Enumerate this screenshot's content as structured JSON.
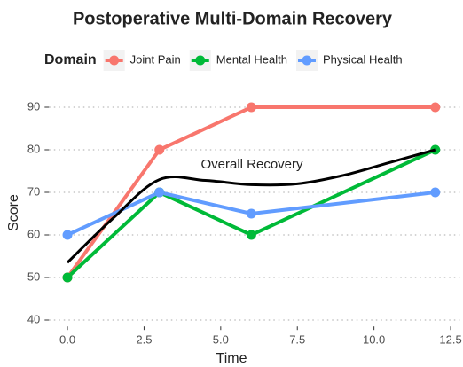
{
  "chart_data": {
    "type": "line",
    "title": "Postoperative Multi-Domain Recovery",
    "legend_title": "Domain",
    "x_label": "Time",
    "y_label": "Score",
    "x": [
      0,
      3,
      6,
      12
    ],
    "series": [
      {
        "name": "Joint Pain",
        "color": "#F8766D",
        "values": [
          50,
          80,
          90,
          90
        ]
      },
      {
        "name": "Mental Health",
        "color": "#00BA38",
        "values": [
          50,
          70,
          60,
          80
        ]
      },
      {
        "name": "Physical Health",
        "color": "#619CFF",
        "values": [
          60,
          70,
          65,
          70
        ]
      }
    ],
    "smooth": {
      "name": "Overall Recovery",
      "color": "#000000",
      "x": [
        0,
        1.5,
        3,
        4.5,
        6,
        7.5,
        9,
        10.5,
        12
      ],
      "values": [
        53.5,
        64,
        73,
        72.8,
        71.8,
        72,
        74,
        77,
        80
      ]
    },
    "xlim": [
      -0.6,
      12.8
    ],
    "xticks": [
      {
        "value": 0,
        "label": "0.0"
      },
      {
        "value": 2.5,
        "label": "2.5"
      },
      {
        "value": 5,
        "label": "5.0"
      },
      {
        "value": 7.5,
        "label": "7.5"
      },
      {
        "value": 10,
        "label": "10.0"
      },
      {
        "value": 12.5,
        "label": "12.5"
      }
    ],
    "ylim": [
      38.5,
      93.5
    ],
    "yticks": [
      40,
      50,
      60,
      70,
      80,
      90
    ],
    "grid": true,
    "legend_position": "top"
  }
}
